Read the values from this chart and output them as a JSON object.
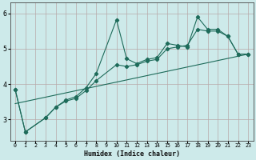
{
  "xlabel": "Humidex (Indice chaleur)",
  "ylabel": "",
  "xlim": [
    -0.5,
    23.5
  ],
  "ylim": [
    2.4,
    6.3
  ],
  "yticks": [
    3,
    4,
    5,
    6
  ],
  "xticks": [
    0,
    1,
    2,
    3,
    4,
    5,
    6,
    7,
    8,
    9,
    10,
    11,
    12,
    13,
    14,
    15,
    16,
    17,
    18,
    19,
    20,
    21,
    22,
    23
  ],
  "bg_color": "#cdeaea",
  "grid_color": "#b8a8a8",
  "line_color": "#1e6b5a",
  "line1": {
    "x": [
      0,
      1,
      3,
      4,
      5,
      6,
      7,
      8,
      10,
      11,
      12,
      13,
      14,
      15,
      16,
      17,
      18,
      19,
      20,
      21,
      22,
      23
    ],
    "y": [
      3.85,
      2.65,
      3.05,
      3.35,
      3.55,
      3.65,
      3.9,
      4.3,
      5.82,
      4.72,
      4.58,
      4.7,
      4.75,
      5.15,
      5.1,
      5.05,
      5.9,
      5.55,
      5.55,
      5.35,
      4.85,
      4.85
    ]
  },
  "line2": {
    "x": [
      0,
      1,
      3,
      4,
      5,
      6,
      7,
      8,
      10,
      11,
      12,
      13,
      14,
      15,
      16,
      17,
      18,
      19,
      20,
      21,
      22,
      23
    ],
    "y": [
      3.85,
      2.65,
      3.05,
      3.35,
      3.52,
      3.6,
      3.82,
      4.1,
      4.55,
      4.5,
      4.55,
      4.65,
      4.7,
      5.0,
      5.05,
      5.1,
      5.55,
      5.5,
      5.5,
      5.35,
      4.85,
      4.85
    ]
  },
  "line3": {
    "x": [
      0,
      23
    ],
    "y": [
      3.45,
      4.85
    ]
  }
}
